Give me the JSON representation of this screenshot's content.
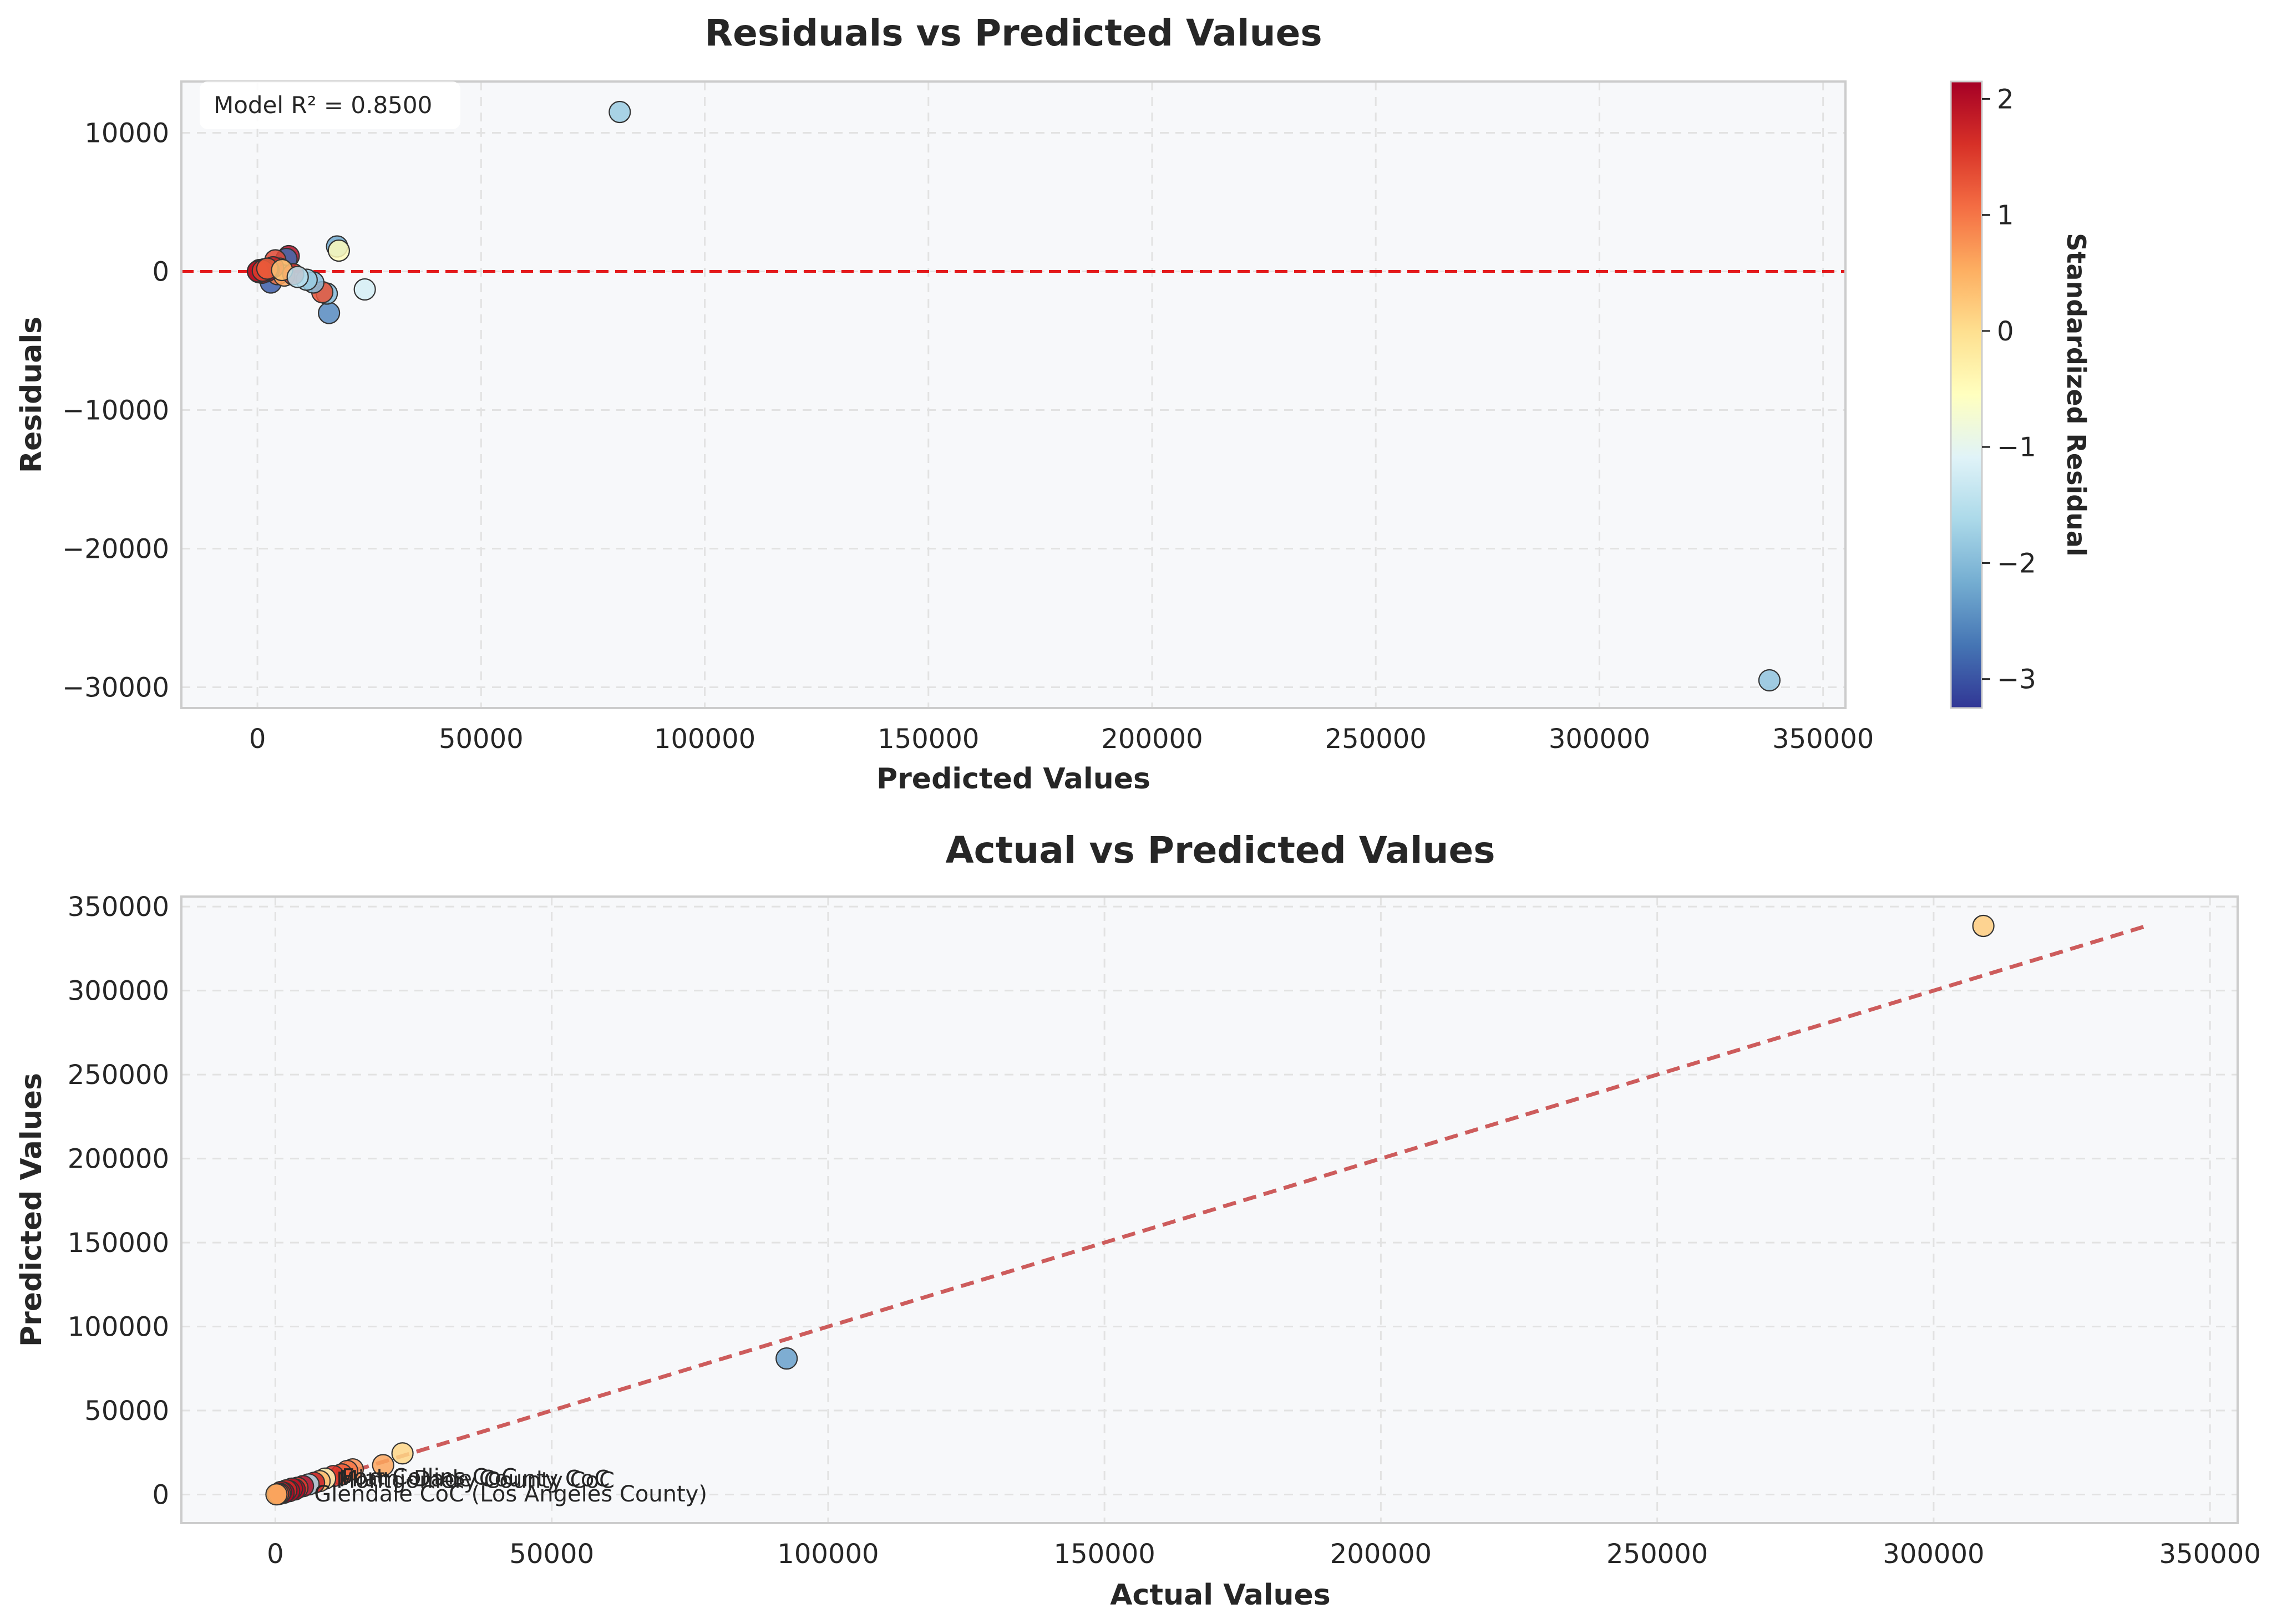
{
  "colors": {
    "plot_background": "#f7f8fa",
    "zero_line": "#e31a1c",
    "identity_line": "#cd5c5c",
    "colormap": "RdYlBu_r"
  },
  "chart_data": [
    {
      "type": "scatter",
      "title": "Residuals vs Predicted Values",
      "xlabel": "Predicted Values",
      "ylabel": "Residuals",
      "xlim": [
        -17000,
        355000
      ],
      "ylim": [
        -31500,
        13700
      ],
      "xticks": [
        0,
        50000,
        100000,
        150000,
        200000,
        250000,
        300000,
        350000
      ],
      "yticks": [
        -30000,
        -20000,
        -10000,
        0,
        10000
      ],
      "grid": true,
      "reference_line": {
        "type": "horizontal",
        "y": 0,
        "style": "dashed"
      },
      "annotation": "Model R² = 0.8500",
      "colorbar": {
        "label": "Standardized Residual",
        "range": [
          -3.25,
          2.15
        ],
        "ticks": [
          -3,
          -2,
          -1,
          0,
          1,
          2
        ]
      },
      "points": [
        {
          "x": 81000,
          "y": 11500,
          "c": -1.8
        },
        {
          "x": 338000,
          "y": -29500,
          "c": -1.9
        },
        {
          "x": 17800,
          "y": 1800,
          "c": -2.2
        },
        {
          "x": 18200,
          "y": 1500,
          "c": -0.5
        },
        {
          "x": 24000,
          "y": -1300,
          "c": -1.2
        },
        {
          "x": 16000,
          "y": -3000,
          "c": -2.5
        },
        {
          "x": 15500,
          "y": -1600,
          "c": -2.0
        },
        {
          "x": 14500,
          "y": -1500,
          "c": 1.3
        },
        {
          "x": 12500,
          "y": -800,
          "c": -2.0
        },
        {
          "x": 11000,
          "y": -600,
          "c": -1.8
        },
        {
          "x": 7000,
          "y": 1100,
          "c": 2.0
        },
        {
          "x": 6500,
          "y": 900,
          "c": -2.8
        },
        {
          "x": 4000,
          "y": 800,
          "c": 1.4
        },
        {
          "x": 3000,
          "y": -800,
          "c": -2.9
        },
        {
          "x": 5000,
          "y": 200,
          "c": 0.8
        },
        {
          "x": 4500,
          "y": -200,
          "c": 1.0
        },
        {
          "x": 6000,
          "y": -300,
          "c": 0.6
        },
        {
          "x": 8000,
          "y": -200,
          "c": 1.6
        },
        {
          "x": 3500,
          "y": 300,
          "c": 1.8
        },
        {
          "x": 2500,
          "y": 100,
          "c": 2.0
        },
        {
          "x": 2000,
          "y": 0,
          "c": 2.1
        },
        {
          "x": 1500,
          "y": 150,
          "c": 1.9
        },
        {
          "x": 1000,
          "y": -100,
          "c": 2.0
        },
        {
          "x": 800,
          "y": 50,
          "c": 1.7
        },
        {
          "x": 500,
          "y": 100,
          "c": 2.1
        },
        {
          "x": 300,
          "y": -50,
          "c": 1.8
        },
        {
          "x": 200,
          "y": 20,
          "c": 2.0
        },
        {
          "x": 100,
          "y": 0,
          "c": 1.9
        },
        {
          "x": 1200,
          "y": 50,
          "c": 1.5
        },
        {
          "x": 2200,
          "y": 200,
          "c": 1.2
        },
        {
          "x": 5500,
          "y": 100,
          "c": 0.3
        },
        {
          "x": 9000,
          "y": -400,
          "c": -1.5
        }
      ]
    },
    {
      "type": "scatter",
      "title": "Actual vs Predicted Values",
      "xlabel": "Actual Values",
      "ylabel": "Predicted Values",
      "xlim": [
        -17000,
        355000
      ],
      "ylim": [
        -17000,
        356000
      ],
      "xticks": [
        0,
        50000,
        100000,
        150000,
        200000,
        250000,
        300000,
        350000
      ],
      "yticks": [
        0,
        50000,
        100000,
        150000,
        200000,
        250000,
        300000,
        350000
      ],
      "grid": true,
      "reference_line": {
        "type": "identity",
        "from": 0,
        "to": 338000,
        "style": "dashed"
      },
      "labels": [
        {
          "text": "Glendale CoC (Los Angeles County)",
          "x": 5000,
          "y": 500
        },
        {
          "text": "Montgomery County CoC",
          "x": 9000,
          "y": 8500
        },
        {
          "text": "Miami-Dade County CoC",
          "x": 9500,
          "y": 9500
        },
        {
          "text": "Fort Collins CoC",
          "x": 10000,
          "y": 10500
        }
      ],
      "points": [
        {
          "x": 309000,
          "y": 338500,
          "c": 0.2
        },
        {
          "x": 92500,
          "y": 81000,
          "c": -2.3
        },
        {
          "x": 23000,
          "y": 24500,
          "c": 0.1
        },
        {
          "x": 19500,
          "y": 17500,
          "c": 0.6
        },
        {
          "x": 14000,
          "y": 15000,
          "c": 0.8
        },
        {
          "x": 13000,
          "y": 14000,
          "c": 1.0
        },
        {
          "x": 12000,
          "y": 12000,
          "c": 1.2
        },
        {
          "x": 10500,
          "y": 11000,
          "c": 1.6
        },
        {
          "x": 9000,
          "y": 9500,
          "c": -0.5
        },
        {
          "x": 8000,
          "y": 8000,
          "c": 0.4
        },
        {
          "x": 7000,
          "y": 7000,
          "c": 1.8
        },
        {
          "x": 6000,
          "y": 6000,
          "c": -1.6
        },
        {
          "x": 5000,
          "y": 5000,
          "c": 2.0
        },
        {
          "x": 4000,
          "y": 4000,
          "c": 1.5
        },
        {
          "x": 3500,
          "y": 3000,
          "c": 2.1
        },
        {
          "x": 3000,
          "y": 3500,
          "c": 1.9
        },
        {
          "x": 2500,
          "y": 2000,
          "c": 2.0
        },
        {
          "x": 2000,
          "y": 2500,
          "c": 1.7
        },
        {
          "x": 1500,
          "y": 1000,
          "c": 2.1
        },
        {
          "x": 1000,
          "y": 1500,
          "c": 1.8
        },
        {
          "x": 800,
          "y": 500,
          "c": 1.4
        },
        {
          "x": 500,
          "y": 300,
          "c": 1.2
        },
        {
          "x": 200,
          "y": 100,
          "c": 0.5
        }
      ]
    }
  ]
}
